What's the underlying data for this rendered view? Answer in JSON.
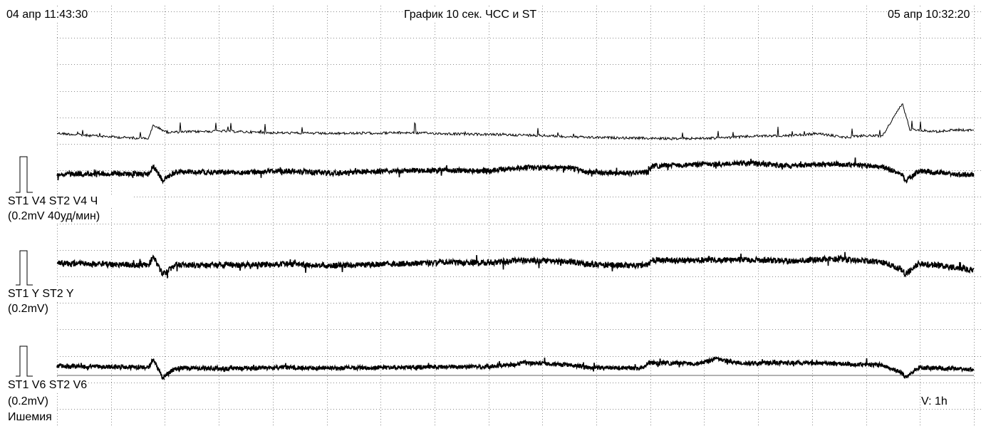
{
  "header": {
    "start_time": "04 апр 11:43:30",
    "title": "График 10 сек. ЧСС и ST",
    "end_time": "05 апр 10:32:20"
  },
  "channels": [
    {
      "label": "ST1 V4 ST2 V4 Ч",
      "scale": "(0.2mV 40уд/мин)"
    },
    {
      "label": "ST1 Y ST2 Y",
      "scale": "(0.2mV)"
    },
    {
      "label": "ST1 V6 ST2 V6",
      "scale": "(0.2mV)"
    }
  ],
  "footer": {
    "ischemia_label": "Ишемия",
    "v_scale": "V: 1h"
  },
  "colors": {
    "grid": "#8a8a8a",
    "trace": "#000000",
    "baseline": "#666666"
  },
  "chart_data": {
    "type": "line",
    "title": "График 10 сек. ЧСС и ST",
    "x_range": [
      "04 апр 11:43:30",
      "05 апр 10:32:20"
    ],
    "grid": true,
    "channels": [
      {
        "name": "ST1 V4 ST2 V4 Ч",
        "units": "0.2mV 40уд/мин",
        "heart_rate_trace": {
          "shape": [
            [
              0,
              0.28
            ],
            [
              0.03,
              0.12
            ],
            [
              0.07,
              -0.05
            ],
            [
              0.1,
              -0.12
            ],
            [
              0.105,
              0.9
            ],
            [
              0.12,
              0.35
            ],
            [
              0.18,
              0.45
            ],
            [
              0.23,
              0.32
            ],
            [
              0.3,
              0.25
            ],
            [
              0.38,
              0.32
            ],
            [
              0.45,
              0.2
            ],
            [
              0.52,
              0.12
            ],
            [
              0.58,
              -0.05
            ],
            [
              0.63,
              -0.1
            ],
            [
              0.67,
              -0.15
            ],
            [
              0.72,
              -0.1
            ],
            [
              0.76,
              0.05
            ],
            [
              0.8,
              0.1
            ],
            [
              0.83,
              0.25
            ],
            [
              0.86,
              -0.05
            ],
            [
              0.88,
              0.1
            ],
            [
              0.9,
              0.05
            ],
            [
              0.922,
              2.6
            ],
            [
              0.93,
              0.6
            ],
            [
              0.96,
              0.4
            ],
            [
              0.98,
              0.55
            ],
            [
              1,
              0.5
            ]
          ]
        },
        "st_trace": {
          "shape": [
            [
              0,
              -0.1
            ],
            [
              0.1,
              -0.1
            ],
            [
              0.105,
              0.45
            ],
            [
              0.115,
              -0.55
            ],
            [
              0.13,
              0.05
            ],
            [
              0.2,
              0.0
            ],
            [
              0.25,
              0.1
            ],
            [
              0.3,
              -0.05
            ],
            [
              0.36,
              0.1
            ],
            [
              0.42,
              0.15
            ],
            [
              0.47,
              0.1
            ],
            [
              0.51,
              0.35
            ],
            [
              0.56,
              0.3
            ],
            [
              0.58,
              0.0
            ],
            [
              0.63,
              -0.05
            ],
            [
              0.645,
              0.05
            ],
            [
              0.65,
              0.45
            ],
            [
              0.7,
              0.55
            ],
            [
              0.75,
              0.65
            ],
            [
              0.8,
              0.45
            ],
            [
              0.85,
              0.6
            ],
            [
              0.9,
              0.4
            ],
            [
              0.922,
              -0.15
            ],
            [
              0.925,
              -0.6
            ],
            [
              0.94,
              0.1
            ],
            [
              1,
              -0.2
            ]
          ]
        }
      },
      {
        "name": "ST1 Y ST2 Y",
        "units": "0.2mV",
        "st_trace": {
          "shape": [
            [
              0,
              0.1
            ],
            [
              0.1,
              0.0
            ],
            [
              0.105,
              0.55
            ],
            [
              0.115,
              -0.6
            ],
            [
              0.13,
              0.0
            ],
            [
              0.2,
              0.0
            ],
            [
              0.25,
              0.05
            ],
            [
              0.3,
              -0.05
            ],
            [
              0.36,
              0.05
            ],
            [
              0.42,
              0.15
            ],
            [
              0.47,
              0.15
            ],
            [
              0.51,
              0.3
            ],
            [
              0.56,
              0.2
            ],
            [
              0.58,
              0.05
            ],
            [
              0.63,
              -0.05
            ],
            [
              0.645,
              0.0
            ],
            [
              0.65,
              0.3
            ],
            [
              0.7,
              0.3
            ],
            [
              0.75,
              0.35
            ],
            [
              0.8,
              0.25
            ],
            [
              0.85,
              0.4
            ],
            [
              0.9,
              0.2
            ],
            [
              0.922,
              -0.3
            ],
            [
              0.925,
              -0.6
            ],
            [
              0.94,
              0.1
            ],
            [
              1,
              -0.3
            ]
          ]
        }
      },
      {
        "name": "ST1 V6 ST2 V6",
        "units": "0.2mV",
        "st_trace": {
          "shape": [
            [
              0,
              0.15
            ],
            [
              0.1,
              0.05
            ],
            [
              0.105,
              0.6
            ],
            [
              0.115,
              -0.6
            ],
            [
              0.13,
              0.0
            ],
            [
              0.2,
              0.0
            ],
            [
              0.25,
              0.05
            ],
            [
              0.3,
              0.0
            ],
            [
              0.36,
              0.05
            ],
            [
              0.42,
              0.1
            ],
            [
              0.47,
              0.1
            ],
            [
              0.5,
              0.25
            ],
            [
              0.51,
              0.35
            ],
            [
              0.56,
              0.2
            ],
            [
              0.58,
              0.05
            ],
            [
              0.63,
              0.0
            ],
            [
              0.64,
              0.05
            ],
            [
              0.645,
              0.35
            ],
            [
              0.7,
              0.3
            ],
            [
              0.72,
              0.6
            ],
            [
              0.75,
              0.3
            ],
            [
              0.8,
              0.35
            ],
            [
              0.85,
              0.3
            ],
            [
              0.9,
              0.2
            ],
            [
              0.922,
              -0.3
            ],
            [
              0.925,
              -0.6
            ],
            [
              0.94,
              0.05
            ],
            [
              1,
              -0.05
            ]
          ]
        }
      }
    ]
  }
}
